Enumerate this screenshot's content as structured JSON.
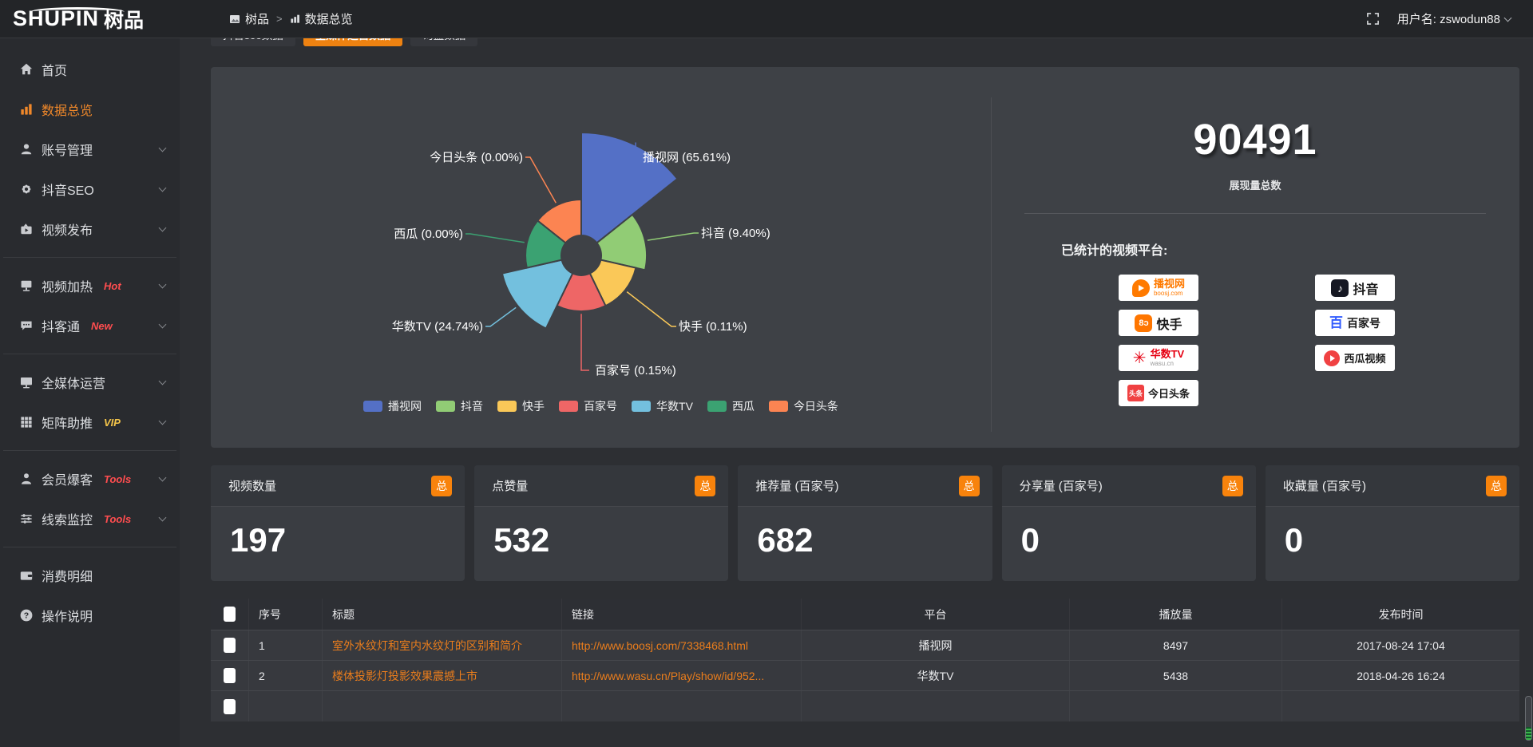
{
  "theme": {
    "accent": "#ee8211",
    "link": "#ea7d1c",
    "hot_badge": "#ff4d4f",
    "vip_badge": "#f6c64a",
    "panel_bg": "#3e4146"
  },
  "topbar": {
    "logo_en": "SHUPIN",
    "logo_cn": "树品",
    "breadcrumb": {
      "root": "树品",
      "separator": ">",
      "current": "数据总览"
    },
    "user": "用户名: zswodun88"
  },
  "tabs": [
    {
      "label": "抖音seo数据"
    },
    {
      "label": "全媒体运营数据"
    },
    {
      "label": "询盘数据"
    }
  ],
  "sidebar": {
    "items": [
      {
        "label": "首页"
      },
      {
        "label": "数据总览"
      },
      {
        "label": "账号管理"
      },
      {
        "label": "抖音SEO"
      },
      {
        "label": "视频发布"
      },
      {
        "label": "视频加热",
        "badge": "Hot"
      },
      {
        "label": "抖客通",
        "badge": "New"
      },
      {
        "label": "全媒体运营"
      },
      {
        "label": "矩阵助推",
        "badge": "VIP"
      },
      {
        "label": "会员爆客",
        "badge": "Tools"
      },
      {
        "label": "线索监控",
        "badge": "Tools"
      },
      {
        "label": "消费明细"
      },
      {
        "label": "操作说明"
      }
    ]
  },
  "chart_data": {
    "type": "pie",
    "variant": "nightingale-rose",
    "title": "",
    "categories": [
      "播视网",
      "抖音",
      "快手",
      "百家号",
      "华数TV",
      "西瓜",
      "今日头条"
    ],
    "values": [
      65.61,
      9.4,
      0.11,
      0.15,
      24.74,
      0.0,
      0.0
    ],
    "unit": "percent",
    "labels": [
      "播视网 (65.61%)",
      "抖音 (9.40%)",
      "快手 (0.11%)",
      "百家号 (0.15%)",
      "华数TV (24.74%)",
      "西瓜 (0.00%)",
      "今日头条 (0.00%)"
    ],
    "colors": [
      "#5470c6",
      "#91cc75",
      "#fac858",
      "#ee6666",
      "#73c0de",
      "#3ba272",
      "#fc8452"
    ],
    "legend_position": "bottom"
  },
  "summary": {
    "total": "90491",
    "total_label": "展现量总数",
    "platforms_title": "已统计的视频平台:",
    "platforms_left": [
      {
        "name": "播视网",
        "sub": "boosj.com"
      },
      {
        "name": "快手",
        "sub": ""
      },
      {
        "name": "华数TV",
        "sub": "wasu.cn"
      },
      {
        "name": "今日头条",
        "sub": ""
      }
    ],
    "platforms_right": [
      {
        "name": "抖音",
        "sub": ""
      },
      {
        "name": "百家号",
        "sub": ""
      },
      {
        "name": "西瓜视频",
        "sub": ""
      }
    ]
  },
  "stat_cards": [
    {
      "title": "视频数量",
      "badge": "总",
      "value": "197"
    },
    {
      "title": "点赞量",
      "badge": "总",
      "value": "532"
    },
    {
      "title": "推荐量 (百家号)",
      "badge": "总",
      "value": "682"
    },
    {
      "title": "分享量 (百家号)",
      "badge": "总",
      "value": "0"
    },
    {
      "title": "收藏量 (百家号)",
      "badge": "总",
      "value": "0"
    }
  ],
  "table": {
    "headers": [
      "序号",
      "标题",
      "链接",
      "平台",
      "播放量",
      "发布时间"
    ],
    "rows": [
      {
        "index": "1",
        "title": "室外水纹灯和室内水纹灯的区别和简介",
        "link": "http://www.boosj.com/7338468.html",
        "platform": "播视网",
        "views": "8497",
        "time": "2017-08-24 17:04"
      },
      {
        "index": "2",
        "title": "楼体投影灯投影效果震撼上市",
        "link": "http://www.wasu.cn/Play/show/id/952...",
        "platform": "华数TV",
        "views": "5438",
        "time": "2018-04-26 16:24"
      }
    ]
  }
}
